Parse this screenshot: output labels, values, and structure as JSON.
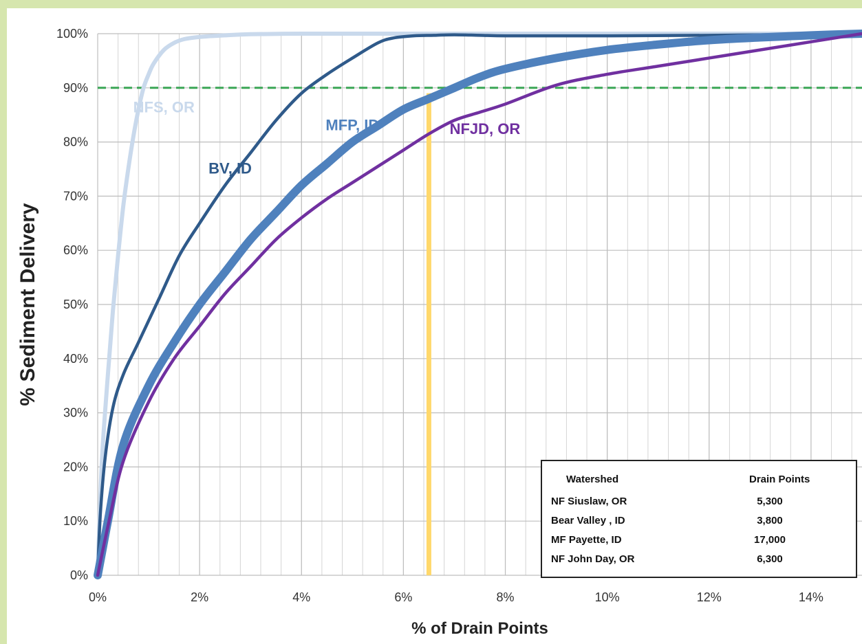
{
  "chart_data": {
    "type": "line",
    "xlabel": "% of Drain Points",
    "ylabel": "% Sediment Delivery",
    "xlim": [
      0,
      15
    ],
    "ylim": [
      0,
      100
    ],
    "x_ticks": [
      0,
      2,
      4,
      6,
      8,
      10,
      12,
      14
    ],
    "x_tick_labels": [
      "0%",
      "2%",
      "4%",
      "6%",
      "8%",
      "10%",
      "12%",
      "14%"
    ],
    "y_ticks": [
      0,
      10,
      20,
      30,
      40,
      50,
      60,
      70,
      80,
      90,
      100
    ],
    "y_tick_labels": [
      "0%",
      "10%",
      "20%",
      "30%",
      "40%",
      "50%",
      "60%",
      "70%",
      "80%",
      "90%",
      "100%"
    ],
    "grid": true,
    "reference_lines": {
      "horizontal": {
        "y": 90,
        "style": "dashed",
        "color": "#3aa655"
      },
      "vertical": {
        "x": 6.5,
        "y_to": 89,
        "color": "#ffd86b"
      }
    },
    "series": [
      {
        "name": "NFS, OR",
        "color": "#c9d9ec",
        "width": 6,
        "x": [
          0,
          0.05,
          0.1,
          0.2,
          0.3,
          0.4,
          0.5,
          0.6,
          0.7,
          0.8,
          0.9,
          1.0,
          1.1,
          1.3,
          1.5,
          1.7,
          2.0,
          2.5,
          3.0,
          4.0,
          5.0,
          6.0,
          8.0,
          10.0,
          12.0,
          15.0
        ],
        "y": [
          0,
          14,
          24,
          37,
          49,
          59,
          68,
          75,
          81,
          86,
          90,
          92.5,
          94.5,
          97,
          98.3,
          99,
          99.4,
          99.7,
          99.9,
          100,
          100,
          100,
          100,
          100,
          100,
          100
        ]
      },
      {
        "name": "BV, ID",
        "color": "#2f5a8a",
        "width": 4.5,
        "x": [
          0,
          0.05,
          0.15,
          0.3,
          0.5,
          0.8,
          1.2,
          1.6,
          2.0,
          2.5,
          3.0,
          3.5,
          4.0,
          4.5,
          5.0,
          5.5,
          5.8,
          6.2,
          6.6,
          7.0,
          7.5,
          8.0,
          9.0,
          10.0,
          12.0,
          15.0
        ],
        "y": [
          0,
          11,
          22,
          31,
          37,
          43,
          51,
          59,
          65,
          72,
          78,
          84,
          89,
          92.5,
          95.5,
          98.3,
          99.2,
          99.6,
          99.7,
          99.8,
          99.7,
          99.6,
          99.6,
          99.6,
          99.7,
          100
        ]
      },
      {
        "name": "MFP, ID",
        "color": "#4f81bd",
        "width": 12,
        "x": [
          0,
          0.2,
          0.5,
          1.0,
          1.5,
          2.0,
          2.5,
          3.0,
          3.5,
          4.0,
          4.5,
          5.0,
          5.5,
          6.0,
          6.5,
          7.0,
          7.5,
          8.0,
          9.0,
          10.0,
          11.0,
          12.0,
          13.0,
          14.0,
          15.0
        ],
        "y": [
          0,
          10,
          24,
          35,
          43,
          50,
          56,
          62,
          67,
          72,
          76,
          80,
          83,
          86,
          88,
          90,
          92,
          93.5,
          95.5,
          97,
          98,
          98.8,
          99.3,
          99.7,
          100
        ]
      },
      {
        "name": "NFJD, OR",
        "color": "#7030a0",
        "width": 4.5,
        "x": [
          0,
          0.2,
          0.5,
          1.0,
          1.5,
          2.0,
          2.5,
          3.0,
          3.5,
          4.0,
          4.5,
          5.0,
          5.5,
          6.0,
          6.5,
          7.0,
          7.5,
          8.0,
          9.0,
          10.0,
          11.0,
          12.0,
          13.0,
          14.0,
          15.0
        ],
        "y": [
          0,
          9,
          21,
          32,
          40,
          46,
          52,
          57,
          62,
          66,
          69.5,
          72.5,
          75.5,
          78.5,
          81.5,
          84,
          85.5,
          87,
          90.5,
          92.5,
          94,
          95.5,
          97,
          98.5,
          100
        ]
      }
    ],
    "series_labels": [
      {
        "text": "NFS, OR",
        "x": 1.3,
        "y": 85.5
      },
      {
        "text": "BV, ID",
        "x": 2.6,
        "y": 74.2
      },
      {
        "text": "MFP, ID",
        "x": 5.0,
        "y": 82.2
      },
      {
        "text": "NFJD, OR",
        "x": 7.6,
        "y": 81.5
      }
    ],
    "table": {
      "headers": [
        "Watershed",
        "Drain Points"
      ],
      "rows": [
        [
          "NF Siuslaw, OR",
          "5,300"
        ],
        [
          "Bear Valley , ID",
          "3,800"
        ],
        [
          "MF Payette, ID",
          "17,000"
        ],
        [
          "NF John Day, OR",
          "6,300"
        ]
      ]
    }
  }
}
